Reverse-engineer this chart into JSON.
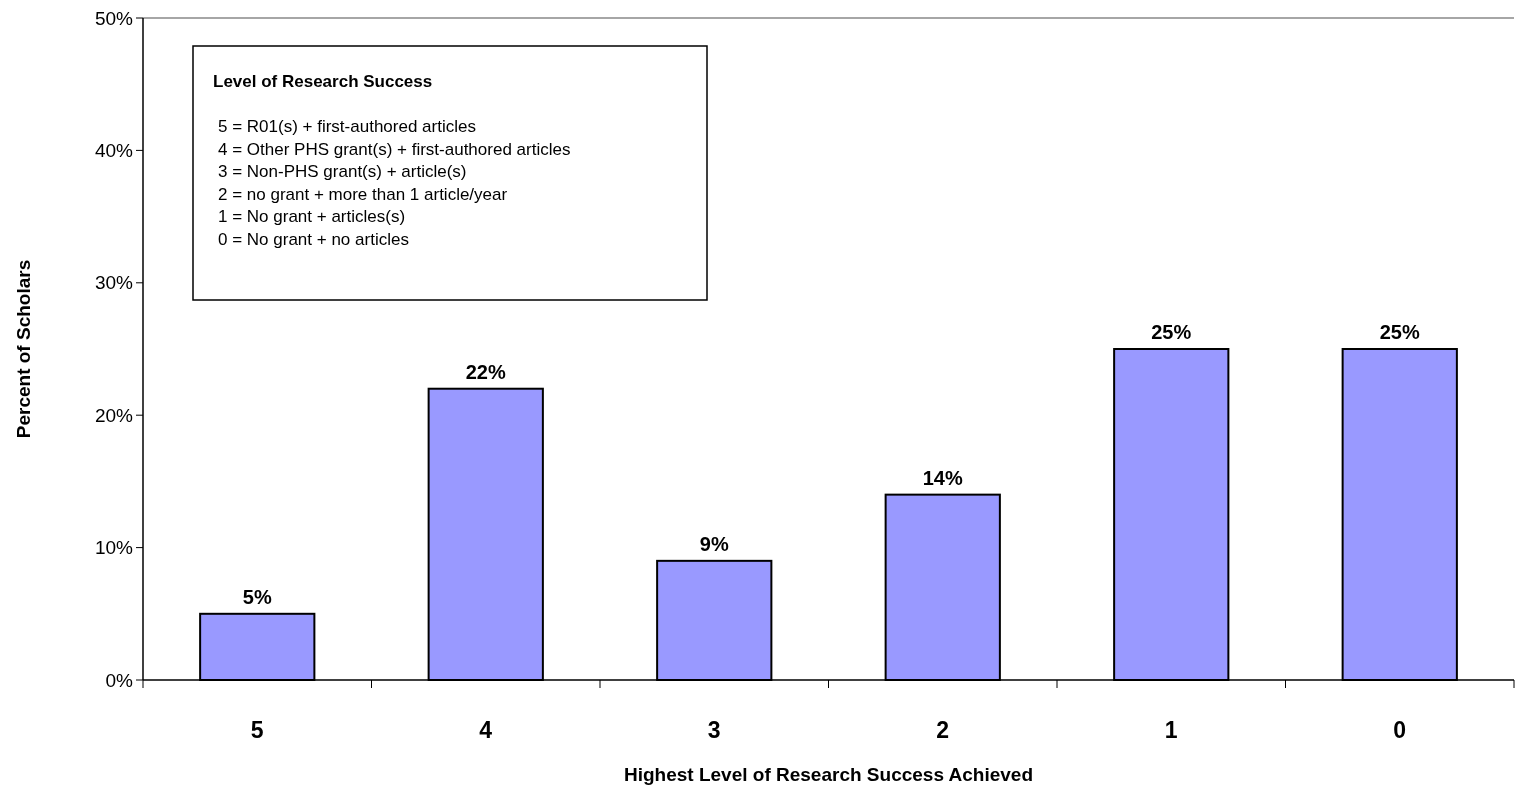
{
  "chart_data": {
    "type": "bar",
    "xlabel": "Highest Level of Research Success Achieved",
    "ylabel": "Percent of Scholars",
    "categories": [
      "5",
      "4",
      "3",
      "2",
      "1",
      "0"
    ],
    "values": [
      5,
      22,
      9,
      14,
      25,
      25
    ],
    "value_labels": [
      "5%",
      "22%",
      "9%",
      "14%",
      "25%",
      "25%"
    ],
    "color": "#9999ff",
    "ylim": [
      0,
      50
    ],
    "yticks": [
      {
        "value": 0,
        "label": "0%"
      },
      {
        "value": 10,
        "label": "10%"
      },
      {
        "value": 20,
        "label": "20%"
      },
      {
        "value": 30,
        "label": "30%"
      },
      {
        "value": 40,
        "label": "40%"
      },
      {
        "value": 50,
        "label": "50%"
      }
    ],
    "grid": false,
    "annotations": [
      "Level of Research Success",
      "5 = R01(s) + first-authored articles",
      "4 = Other PHS grant(s) + first-authored articles",
      "3 = Non-PHS grant(s) + article(s)",
      "2 = no grant + more than 1 article/year",
      "1 = No grant + articles(s)",
      "0 = No grant + no articles"
    ]
  }
}
